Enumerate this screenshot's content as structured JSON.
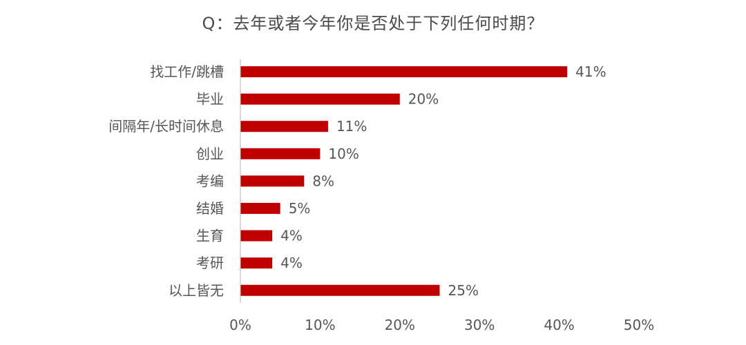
{
  "chart_data": {
    "type": "bar",
    "orientation": "horizontal",
    "title": "Q：去年或者今年你是否处于下列任何时期？",
    "categories": [
      "找工作/跳槽",
      "毕业",
      "间隔年/长时间休息",
      "创业",
      "考编",
      "结婚",
      "生育",
      "考研",
      "以上皆无"
    ],
    "values": [
      41,
      20,
      11,
      10,
      8,
      5,
      4,
      4,
      25
    ],
    "value_labels": [
      "41%",
      "20%",
      "11%",
      "10%",
      "8%",
      "5%",
      "4%",
      "4%",
      "25%"
    ],
    "xlim": [
      0,
      50
    ],
    "x_ticks": [
      0,
      10,
      20,
      30,
      40,
      50
    ],
    "x_tick_labels": [
      "0%",
      "10%",
      "20%",
      "30%",
      "40%",
      "50%"
    ],
    "grid": false,
    "bar_color": "#c00000"
  }
}
